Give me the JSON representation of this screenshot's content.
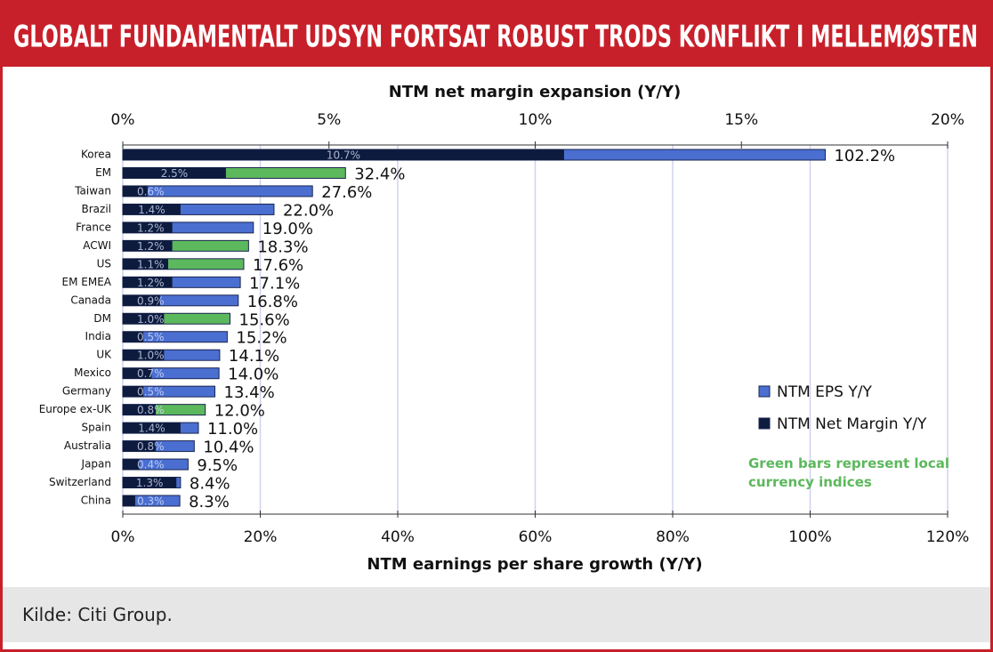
{
  "chart_data": {
    "type": "bar",
    "orientation": "horizontal",
    "title": "GLOBALT FUNDAMENTALT UDSYN FORTSAT ROBUST TRODS KONFLIKT I MELLEMØSTEN",
    "x2_label": "NTM net margin expansion (Y/Y)",
    "x_label": "NTM earnings per share growth (Y/Y)",
    "categories": [
      "Korea",
      "EM",
      "Taiwan",
      "Brazil",
      "France",
      "ACWI",
      "US",
      "EM EMEA",
      "Canada",
      "DM",
      "India",
      "UK",
      "Mexico",
      "Germany",
      "Europe ex-UK",
      "Spain",
      "Australia",
      "Japan",
      "Switzerland",
      "China"
    ],
    "series": [
      {
        "name": "NTM EPS Y/Y",
        "color": "#4a6fd1",
        "bar_colors": [
          "#4a6fd1",
          "#5cb85c",
          "#4a6fd1",
          "#4a6fd1",
          "#4a6fd1",
          "#5cb85c",
          "#5cb85c",
          "#4a6fd1",
          "#4a6fd1",
          "#5cb85c",
          "#4a6fd1",
          "#4a6fd1",
          "#4a6fd1",
          "#4a6fd1",
          "#5cb85c",
          "#4a6fd1",
          "#4a6fd1",
          "#4a6fd1",
          "#4a6fd1",
          "#4a6fd1"
        ],
        "values": [
          102.2,
          32.4,
          27.6,
          22.0,
          19.0,
          18.3,
          17.6,
          17.1,
          16.8,
          15.6,
          15.2,
          14.1,
          14.0,
          13.4,
          12.0,
          11.0,
          10.4,
          9.5,
          8.4,
          8.3
        ],
        "value_labels": [
          "102.2%",
          "32.4%",
          "27.6%",
          "22.0%",
          "19.0%",
          "18.3%",
          "17.6%",
          "17.1%",
          "16.8%",
          "15.6%",
          "15.2%",
          "14.1%",
          "14.0%",
          "13.4%",
          "12.0%",
          "11.0%",
          "10.4%",
          "9.5%",
          "8.4%",
          "8.3%"
        ]
      },
      {
        "name": "NTM Net Margin Y/Y",
        "color": "#0d1b3e",
        "axis": "x2",
        "values": [
          10.7,
          2.5,
          0.6,
          1.4,
          1.2,
          1.2,
          1.1,
          1.2,
          0.9,
          1.0,
          0.5,
          1.0,
          0.7,
          0.5,
          0.8,
          1.4,
          0.8,
          0.4,
          1.3,
          0.3
        ],
        "value_labels": [
          "10.7%",
          "2.5%",
          "0.6%",
          "1.4%",
          "1.2%",
          "1.2%",
          "1.1%",
          "1.2%",
          "0.9%",
          "1.0%",
          "0.5%",
          "1.0%",
          "0.7%",
          "0.5%",
          "0.8%",
          "1.4%",
          "0.8%",
          "0.4%",
          "1.3%",
          "0.3%"
        ]
      }
    ],
    "xlim": [
      0,
      120
    ],
    "xticks": [
      {
        "value": 0,
        "label": "0%"
      },
      {
        "value": 20,
        "label": "20%"
      },
      {
        "value": 40,
        "label": "40%"
      },
      {
        "value": 60,
        "label": "60%"
      },
      {
        "value": 80,
        "label": "80%"
      },
      {
        "value": 100,
        "label": "100%"
      },
      {
        "value": 120,
        "label": "120%"
      }
    ],
    "x2lim": [
      0,
      20
    ],
    "x2ticks": [
      {
        "value": 0,
        "label": "0%"
      },
      {
        "value": 5,
        "label": "5%"
      },
      {
        "value": 10,
        "label": "10%"
      },
      {
        "value": 15,
        "label": "15%"
      },
      {
        "value": 20,
        "label": "20%"
      }
    ],
    "grid": true,
    "legend": "right",
    "note": "Green bars represent local currency indices"
  },
  "source": "Kilde:  Citi Group."
}
